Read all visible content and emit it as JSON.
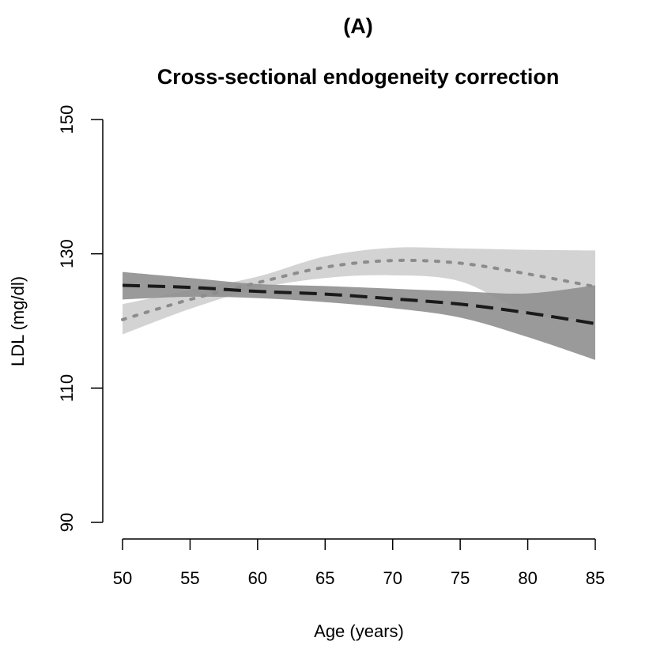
{
  "panel_label": "(A)",
  "chart_data": {
    "type": "line",
    "title": "Cross-sectional endogeneity correction",
    "xlabel": "Age (years)",
    "ylabel": "LDL (mg/dl)",
    "xlim": [
      50,
      85
    ],
    "ylim": [
      90,
      150
    ],
    "xticks": [
      50,
      55,
      60,
      65,
      70,
      75,
      80,
      85
    ],
    "yticks": [
      90,
      110,
      130,
      150
    ],
    "grid": false,
    "legend": "none",
    "series": [
      {
        "style": "dotted",
        "color": "#8c8c8c",
        "band_color": "#d3d3d3",
        "x": [
          50,
          55,
          60,
          65,
          70,
          75,
          80,
          85
        ],
        "y": [
          120.2,
          123.2,
          125.7,
          128.0,
          129.0,
          128.6,
          127.0,
          125.1
        ],
        "lower": [
          118.0,
          121.8,
          124.8,
          126.4,
          126.8,
          125.9,
          121.3,
          120.0
        ],
        "upper": [
          122.5,
          124.6,
          126.6,
          129.6,
          130.9,
          130.8,
          130.6,
          130.5
        ]
      },
      {
        "style": "dashed",
        "color": "#1a1a1a",
        "band_color": "#8f8f8f",
        "x": [
          50,
          55,
          60,
          65,
          70,
          75,
          80,
          85
        ],
        "y": [
          125.3,
          125.0,
          124.4,
          124.0,
          123.3,
          122.5,
          121.2,
          119.6
        ],
        "lower": [
          123.2,
          123.6,
          123.4,
          122.8,
          121.9,
          120.5,
          117.6,
          114.2
        ],
        "upper": [
          127.3,
          126.4,
          125.5,
          125.2,
          124.8,
          124.4,
          124.1,
          125.3
        ]
      }
    ]
  }
}
